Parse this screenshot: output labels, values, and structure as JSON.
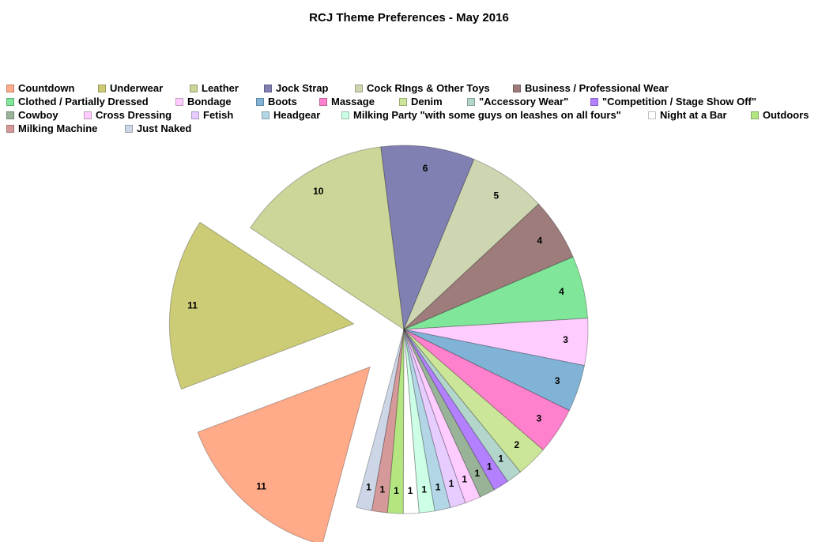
{
  "chart_data": {
    "type": "pie",
    "title": "RCJ Theme Preferences - May 2016",
    "legend_position": "top",
    "exploded": [
      "Countdown",
      "Underwear"
    ],
    "slices": [
      {
        "label": "Countdown",
        "value": 11,
        "color": "#ffaa88"
      },
      {
        "label": "Underwear",
        "value": 11,
        "color": "#cccc77"
      },
      {
        "label": "Leather",
        "value": 10,
        "color": "#ccd699"
      },
      {
        "label": "Jock Strap",
        "value": 6,
        "color": "#8080b3"
      },
      {
        "label": "Cock RIngs & Other Toys",
        "value": 5,
        "color": "#cdd6b1"
      },
      {
        "label": "Business / Professional Wear",
        "value": 4,
        "color": "#9e7c7c"
      },
      {
        "label": "Clothed / Partially Dressed",
        "value": 4,
        "color": "#80e699"
      },
      {
        "label": "Bondage",
        "value": 3,
        "color": "#ffccff"
      },
      {
        "label": "Boots",
        "value": 3,
        "color": "#80b3d6"
      },
      {
        "label": "Massage",
        "value": 3,
        "color": "#ff80cc"
      },
      {
        "label": "Denim",
        "value": 2,
        "color": "#cce699"
      },
      {
        "label": "\"Accessory Wear\"",
        "value": 1,
        "color": "#b3d6cc"
      },
      {
        "label": "\"Competition / Stage Show Off\"",
        "value": 1,
        "color": "#b380ff"
      },
      {
        "label": "Cowboy",
        "value": 1,
        "color": "#99b399"
      },
      {
        "label": "Cross Dressing",
        "value": 1,
        "color": "#ffccff"
      },
      {
        "label": "Fetish",
        "value": 1,
        "color": "#e6ccff"
      },
      {
        "label": "Headgear",
        "value": 1,
        "color": "#b3d6e6"
      },
      {
        "label": "Milking Party \"with some guys on leashes on all fours\"",
        "value": 1,
        "color": "#ccffe6"
      },
      {
        "label": "Night at a Bar",
        "value": 1,
        "color": "#ffffff"
      },
      {
        "label": "Outdoors",
        "value": 1,
        "color": "#b3e680"
      },
      {
        "label": "Milking Machine",
        "value": 1,
        "color": "#d69999"
      },
      {
        "label": "Just Naked",
        "value": 1,
        "color": "#ccd6e6"
      }
    ]
  }
}
